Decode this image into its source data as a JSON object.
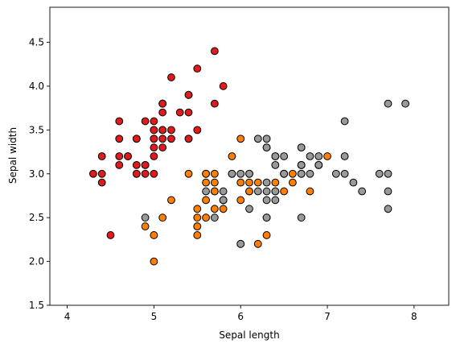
{
  "chart_data": {
    "type": "scatter",
    "title": "",
    "xlabel": "Sepal length",
    "ylabel": "Sepal width",
    "xlim": [
      3.8,
      8.4
    ],
    "ylim": [
      1.5,
      4.9
    ],
    "xticks": [
      4,
      5,
      6,
      7,
      8
    ],
    "xtick_labels": [
      "4",
      "5",
      "6",
      "7",
      "8"
    ],
    "yticks": [
      1.5,
      2.0,
      2.5,
      3.0,
      3.5,
      4.0,
      4.5
    ],
    "ytick_labels": [
      "1.5",
      "2.0",
      "2.5",
      "3.0",
      "3.5",
      "4.0",
      "4.5"
    ],
    "grid": false,
    "legend": "none",
    "series": [
      {
        "color": "#e31a1c",
        "points": [
          [
            5.1,
            3.5
          ],
          [
            4.9,
            3.0
          ],
          [
            4.7,
            3.2
          ],
          [
            4.6,
            3.1
          ],
          [
            5.0,
            3.6
          ],
          [
            5.4,
            3.9
          ],
          [
            4.6,
            3.4
          ],
          [
            5.0,
            3.4
          ],
          [
            4.4,
            2.9
          ],
          [
            4.9,
            3.1
          ],
          [
            5.4,
            3.7
          ],
          [
            4.8,
            3.4
          ],
          [
            4.8,
            3.0
          ],
          [
            4.3,
            3.0
          ],
          [
            5.8,
            4.0
          ],
          [
            5.7,
            4.4
          ],
          [
            5.4,
            3.9
          ],
          [
            5.1,
            3.5
          ],
          [
            5.7,
            3.8
          ],
          [
            5.1,
            3.8
          ],
          [
            5.4,
            3.4
          ],
          [
            5.1,
            3.7
          ],
          [
            4.6,
            3.6
          ],
          [
            5.1,
            3.3
          ],
          [
            4.8,
            3.4
          ],
          [
            5.0,
            3.0
          ],
          [
            5.0,
            3.4
          ],
          [
            5.2,
            3.5
          ],
          [
            5.2,
            3.4
          ],
          [
            4.7,
            3.2
          ],
          [
            4.8,
            3.1
          ],
          [
            5.4,
            3.4
          ],
          [
            5.2,
            4.1
          ],
          [
            5.5,
            4.2
          ],
          [
            4.9,
            3.1
          ],
          [
            5.0,
            3.2
          ],
          [
            5.5,
            3.5
          ],
          [
            4.9,
            3.6
          ],
          [
            4.4,
            3.0
          ],
          [
            5.1,
            3.4
          ],
          [
            5.0,
            3.5
          ],
          [
            4.5,
            2.3
          ],
          [
            4.4,
            3.2
          ],
          [
            5.0,
            3.5
          ],
          [
            5.1,
            3.8
          ],
          [
            4.8,
            3.0
          ],
          [
            5.1,
            3.8
          ],
          [
            4.6,
            3.2
          ],
          [
            5.3,
            3.7
          ],
          [
            5.0,
            3.3
          ]
        ]
      },
      {
        "color": "#ff7f00",
        "points": [
          [
            7.0,
            3.2
          ],
          [
            6.4,
            3.2
          ],
          [
            6.9,
            3.1
          ],
          [
            5.5,
            2.3
          ],
          [
            6.5,
            2.8
          ],
          [
            5.7,
            2.8
          ],
          [
            6.3,
            3.3
          ],
          [
            4.9,
            2.4
          ],
          [
            6.6,
            2.9
          ],
          [
            5.2,
            2.7
          ],
          [
            5.0,
            2.0
          ],
          [
            5.9,
            3.0
          ],
          [
            6.0,
            2.2
          ],
          [
            6.1,
            2.9
          ],
          [
            5.6,
            2.9
          ],
          [
            6.7,
            3.1
          ],
          [
            5.6,
            3.0
          ],
          [
            5.8,
            2.7
          ],
          [
            6.2,
            2.2
          ],
          [
            5.6,
            2.5
          ],
          [
            5.9,
            3.2
          ],
          [
            6.1,
            2.8
          ],
          [
            6.3,
            2.5
          ],
          [
            6.1,
            2.8
          ],
          [
            6.4,
            2.9
          ],
          [
            6.6,
            3.0
          ],
          [
            6.8,
            2.8
          ],
          [
            6.7,
            3.0
          ],
          [
            6.0,
            2.9
          ],
          [
            5.7,
            2.6
          ],
          [
            5.5,
            2.4
          ],
          [
            5.5,
            2.4
          ],
          [
            5.8,
            2.7
          ],
          [
            6.0,
            2.7
          ],
          [
            5.4,
            3.0
          ],
          [
            6.0,
            3.4
          ],
          [
            6.7,
            3.1
          ],
          [
            6.3,
            2.3
          ],
          [
            5.6,
            3.0
          ],
          [
            5.5,
            2.5
          ],
          [
            5.5,
            2.6
          ],
          [
            6.1,
            3.0
          ],
          [
            5.8,
            2.6
          ],
          [
            5.0,
            2.3
          ],
          [
            5.6,
            2.7
          ],
          [
            5.7,
            3.0
          ],
          [
            5.7,
            2.9
          ],
          [
            6.2,
            2.9
          ],
          [
            5.1,
            2.5
          ],
          [
            5.7,
            2.8
          ]
        ]
      },
      {
        "color": "#999999",
        "points": [
          [
            6.3,
            3.3
          ],
          [
            5.8,
            2.7
          ],
          [
            7.1,
            3.0
          ],
          [
            6.3,
            2.9
          ],
          [
            6.5,
            3.0
          ],
          [
            7.6,
            3.0
          ],
          [
            4.9,
            2.5
          ],
          [
            7.3,
            2.9
          ],
          [
            6.7,
            2.5
          ],
          [
            7.2,
            3.6
          ],
          [
            6.5,
            3.2
          ],
          [
            6.4,
            2.7
          ],
          [
            6.8,
            3.0
          ],
          [
            5.7,
            2.5
          ],
          [
            5.8,
            2.8
          ],
          [
            6.4,
            3.2
          ],
          [
            6.5,
            3.0
          ],
          [
            7.7,
            3.8
          ],
          [
            7.7,
            2.6
          ],
          [
            6.0,
            2.2
          ],
          [
            6.9,
            3.2
          ],
          [
            5.6,
            2.8
          ],
          [
            7.7,
            2.8
          ],
          [
            6.3,
            2.7
          ],
          [
            6.7,
            3.3
          ],
          [
            7.2,
            3.2
          ],
          [
            6.2,
            2.8
          ],
          [
            6.1,
            3.0
          ],
          [
            6.4,
            2.8
          ],
          [
            7.2,
            3.0
          ],
          [
            7.4,
            2.8
          ],
          [
            7.9,
            3.8
          ],
          [
            6.4,
            2.8
          ],
          [
            6.3,
            2.8
          ],
          [
            6.1,
            2.6
          ],
          [
            7.7,
            3.0
          ],
          [
            6.3,
            3.4
          ],
          [
            6.4,
            3.1
          ],
          [
            6.0,
            3.0
          ],
          [
            6.9,
            3.1
          ],
          [
            6.7,
            3.1
          ],
          [
            6.9,
            3.1
          ],
          [
            5.8,
            2.7
          ],
          [
            6.8,
            3.2
          ],
          [
            6.7,
            3.3
          ],
          [
            6.7,
            3.0
          ],
          [
            6.3,
            2.5
          ],
          [
            6.5,
            3.0
          ],
          [
            6.2,
            3.4
          ],
          [
            5.9,
            3.0
          ]
        ]
      }
    ]
  }
}
